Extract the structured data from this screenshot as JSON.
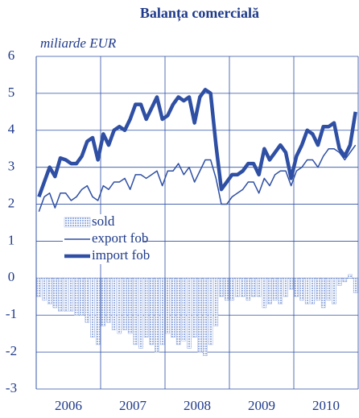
{
  "chart_data": {
    "type": "bar_line",
    "title": "Balanța comercială",
    "subtitle": "miliarde EUR",
    "categories": [
      null,
      null,
      null,
      null,
      null,
      null,
      "2006",
      null,
      null,
      null,
      null,
      null,
      null,
      null,
      null,
      null,
      null,
      null,
      "2007",
      null,
      null,
      null,
      null,
      null,
      null,
      null,
      null,
      null,
      null,
      null,
      "2008",
      null,
      null,
      null,
      null,
      null,
      null,
      null,
      null,
      null,
      null,
      null,
      "2009",
      null,
      null,
      null,
      null,
      null,
      null,
      null,
      null,
      null,
      null,
      null,
      "2010",
      null,
      null,
      null,
      null,
      null
    ],
    "ylim": [
      -3,
      6
    ],
    "yticks": [
      -3,
      -2,
      -1,
      0,
      1,
      2,
      3,
      4,
      5,
      6
    ],
    "grid": true,
    "legend": "upper-left",
    "series": [
      {
        "name": "sold",
        "kind": "bar",
        "color": "#9fb3e0",
        "values": [
          -0.5,
          -0.6,
          -0.7,
          -0.8,
          -0.9,
          -0.9,
          -0.9,
          -1.0,
          -1.0,
          -1.2,
          -1.6,
          -1.8,
          -1.3,
          -1.2,
          -1.4,
          -1.5,
          -1.4,
          -1.5,
          -1.8,
          -1.9,
          -1.6,
          -1.8,
          -2.0,
          -1.8,
          -1.5,
          -1.6,
          -1.8,
          -1.7,
          -1.9,
          -1.6,
          -2.0,
          -2.1,
          -1.8,
          -1.3,
          -0.5,
          -0.6,
          -0.6,
          -0.5,
          -0.5,
          -0.6,
          -0.5,
          -0.5,
          -0.8,
          -0.7,
          -0.6,
          -0.7,
          -0.5,
          -0.3,
          -0.5,
          -0.6,
          -0.7,
          -0.7,
          -0.6,
          -0.8,
          -0.6,
          -0.7,
          -0.2,
          -0.1,
          0.1,
          -0.4
        ]
      },
      {
        "name": "export fob",
        "kind": "line",
        "width": 1.5,
        "color": "#2e4fa3",
        "values": [
          1.8,
          2.2,
          2.3,
          1.9,
          2.3,
          2.3,
          2.1,
          2.2,
          2.4,
          2.5,
          2.2,
          2.1,
          2.5,
          2.4,
          2.6,
          2.6,
          2.7,
          2.4,
          2.8,
          2.8,
          2.7,
          2.8,
          2.9,
          2.5,
          2.9,
          2.9,
          3.1,
          2.8,
          3.0,
          2.6,
          2.9,
          3.2,
          3.2,
          2.7,
          2.0,
          2.0,
          2.2,
          2.3,
          2.4,
          2.6,
          2.6,
          2.3,
          2.7,
          2.5,
          2.8,
          2.9,
          2.9,
          2.5,
          2.9,
          3.0,
          3.2,
          3.2,
          3.0,
          3.3,
          3.5,
          3.5,
          3.4,
          3.2,
          3.4,
          3.6
        ]
      },
      {
        "name": "import fob",
        "kind": "line",
        "width": 4.5,
        "color": "#2e4fa3",
        "values": [
          2.2,
          2.6,
          3.0,
          2.75,
          3.25,
          3.2,
          3.1,
          3.1,
          3.3,
          3.7,
          3.8,
          3.2,
          3.9,
          3.6,
          4.0,
          4.1,
          4.0,
          4.3,
          4.7,
          4.7,
          4.3,
          4.6,
          4.9,
          4.3,
          4.4,
          4.7,
          4.9,
          4.8,
          4.9,
          4.2,
          4.9,
          5.1,
          5.0,
          3.6,
          2.4,
          2.6,
          2.8,
          2.8,
          2.9,
          3.1,
          3.1,
          2.8,
          3.5,
          3.2,
          3.4,
          3.6,
          3.4,
          2.7,
          3.3,
          3.6,
          4.0,
          3.9,
          3.6,
          4.1,
          4.1,
          4.2,
          3.5,
          3.3,
          3.6,
          4.5
        ]
      }
    ]
  }
}
